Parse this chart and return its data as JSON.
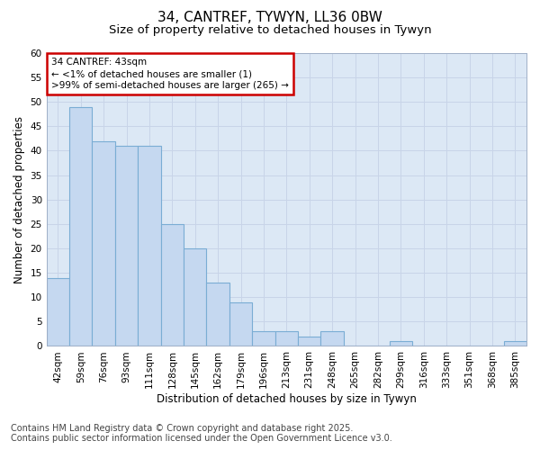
{
  "title_line1": "34, CANTREF, TYWYN, LL36 0BW",
  "title_line2": "Size of property relative to detached houses in Tywyn",
  "xlabel": "Distribution of detached houses by size in Tywyn",
  "ylabel": "Number of detached properties",
  "bar_labels": [
    "42sqm",
    "59sqm",
    "76sqm",
    "93sqm",
    "111sqm",
    "128sqm",
    "145sqm",
    "162sqm",
    "179sqm",
    "196sqm",
    "213sqm",
    "231sqm",
    "248sqm",
    "265sqm",
    "282sqm",
    "299sqm",
    "316sqm",
    "333sqm",
    "351sqm",
    "368sqm",
    "385sqm"
  ],
  "bar_values": [
    14,
    49,
    42,
    41,
    41,
    25,
    20,
    13,
    9,
    3,
    3,
    2,
    3,
    0,
    0,
    1,
    0,
    0,
    0,
    0,
    1
  ],
  "bar_color": "#c5d8f0",
  "bar_edge_color": "#7aadd4",
  "ylim": [
    0,
    60
  ],
  "yticks": [
    0,
    5,
    10,
    15,
    20,
    25,
    30,
    35,
    40,
    45,
    50,
    55,
    60
  ],
  "grid_color": "#c8d4e8",
  "plot_bg_color": "#dce8f5",
  "fig_bg_color": "#ffffff",
  "annotation_title": "34 CANTREF: 43sqm",
  "annotation_line1": "← <1% of detached houses are smaller (1)",
  "annotation_line2": ">99% of semi-detached houses are larger (265) →",
  "annotation_box_color": "#ffffff",
  "annotation_border_color": "#cc0000",
  "footer_line1": "Contains HM Land Registry data © Crown copyright and database right 2025.",
  "footer_line2": "Contains public sector information licensed under the Open Government Licence v3.0.",
  "title_fontsize": 11,
  "subtitle_fontsize": 9.5,
  "axis_label_fontsize": 8.5,
  "tick_fontsize": 7.5,
  "annotation_fontsize": 7.5,
  "footer_fontsize": 7
}
